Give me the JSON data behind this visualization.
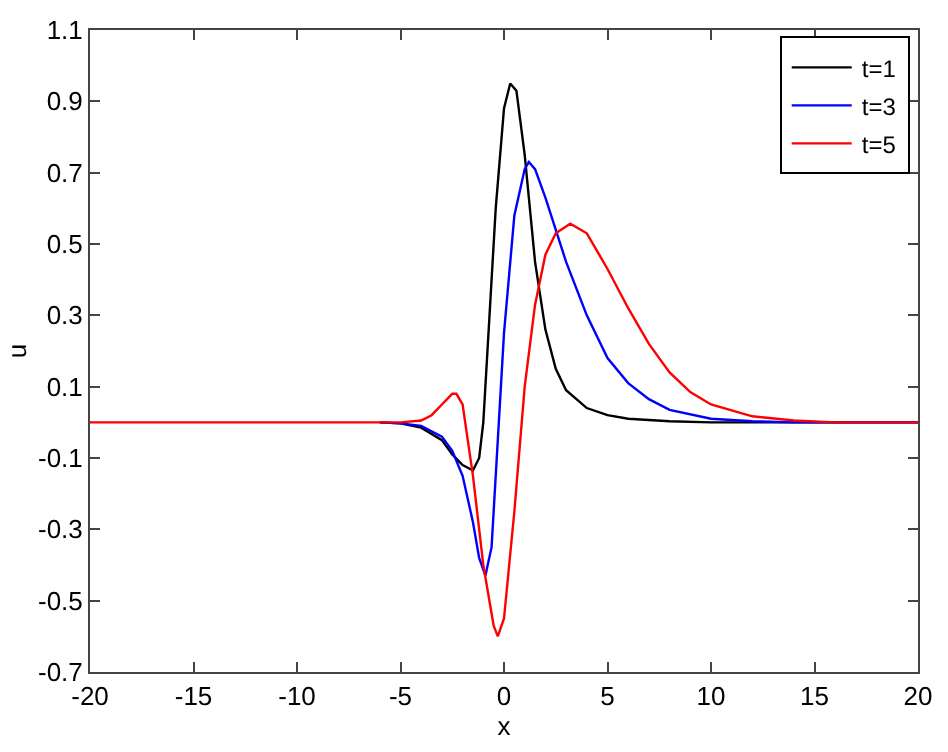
{
  "chart_data": {
    "type": "line",
    "xlabel": "x",
    "ylabel": "u",
    "xlim": [
      -20,
      20
    ],
    "xticks": [
      -20,
      -15,
      -10,
      -5,
      0,
      5,
      10,
      15,
      20
    ],
    "ylim": [
      -0.7,
      1.1
    ],
    "yticks": [
      -0.7,
      -0.5,
      -0.3,
      -0.1,
      0.1,
      0.3,
      0.5,
      0.7,
      0.9,
      1.1
    ],
    "legend": "top right",
    "marker": "none",
    "line_style": "solid",
    "series": [
      {
        "name": "t=1",
        "color": "#000000",
        "x": [
          -6,
          -5,
          -4,
          -3,
          -2.5,
          -2,
          -1.5,
          -1.2,
          -1,
          -0.7,
          -0.4,
          0,
          0.3,
          0.6,
          1,
          1.5,
          2,
          2.5,
          3,
          4,
          5,
          6,
          8,
          10,
          20
        ],
        "values": [
          0,
          -0.003,
          -0.015,
          -0.05,
          -0.09,
          -0.12,
          -0.135,
          -0.1,
          0,
          0.3,
          0.6,
          0.88,
          0.95,
          0.93,
          0.75,
          0.45,
          0.26,
          0.15,
          0.09,
          0.04,
          0.02,
          0.01,
          0.003,
          0,
          0
        ]
      },
      {
        "name": "t=3",
        "color": "#0000ff",
        "x": [
          -6,
          -5,
          -4,
          -3,
          -2.5,
          -2,
          -1.5,
          -1.2,
          -0.9,
          -0.6,
          -0.3,
          0,
          0.5,
          1,
          1.2,
          1.5,
          2,
          3,
          4,
          5,
          6,
          7,
          8,
          10,
          12,
          14,
          20
        ],
        "values": [
          0,
          -0.003,
          -0.01,
          -0.04,
          -0.08,
          -0.15,
          -0.28,
          -0.38,
          -0.43,
          -0.35,
          -0.05,
          0.25,
          0.58,
          0.71,
          0.73,
          0.71,
          0.63,
          0.45,
          0.3,
          0.18,
          0.11,
          0.065,
          0.035,
          0.01,
          0.003,
          0,
          0
        ]
      },
      {
        "name": "t=5",
        "color": "#ff0000",
        "x": [
          -20,
          -10,
          -5,
          -4,
          -3.5,
          -3,
          -2.5,
          -2.3,
          -2,
          -1.5,
          -1,
          -0.5,
          -0.3,
          0,
          0.5,
          1,
          1.5,
          2,
          2.5,
          3.2,
          4,
          5,
          6,
          7,
          8,
          9,
          10,
          12,
          14,
          16,
          20
        ],
        "values": [
          0,
          0,
          0,
          0.005,
          0.02,
          0.05,
          0.08,
          0.08,
          0.05,
          -0.15,
          -0.4,
          -0.57,
          -0.6,
          -0.55,
          -0.25,
          0.1,
          0.33,
          0.47,
          0.53,
          0.557,
          0.53,
          0.43,
          0.32,
          0.22,
          0.14,
          0.085,
          0.05,
          0.017,
          0.005,
          0,
          0
        ]
      }
    ]
  }
}
